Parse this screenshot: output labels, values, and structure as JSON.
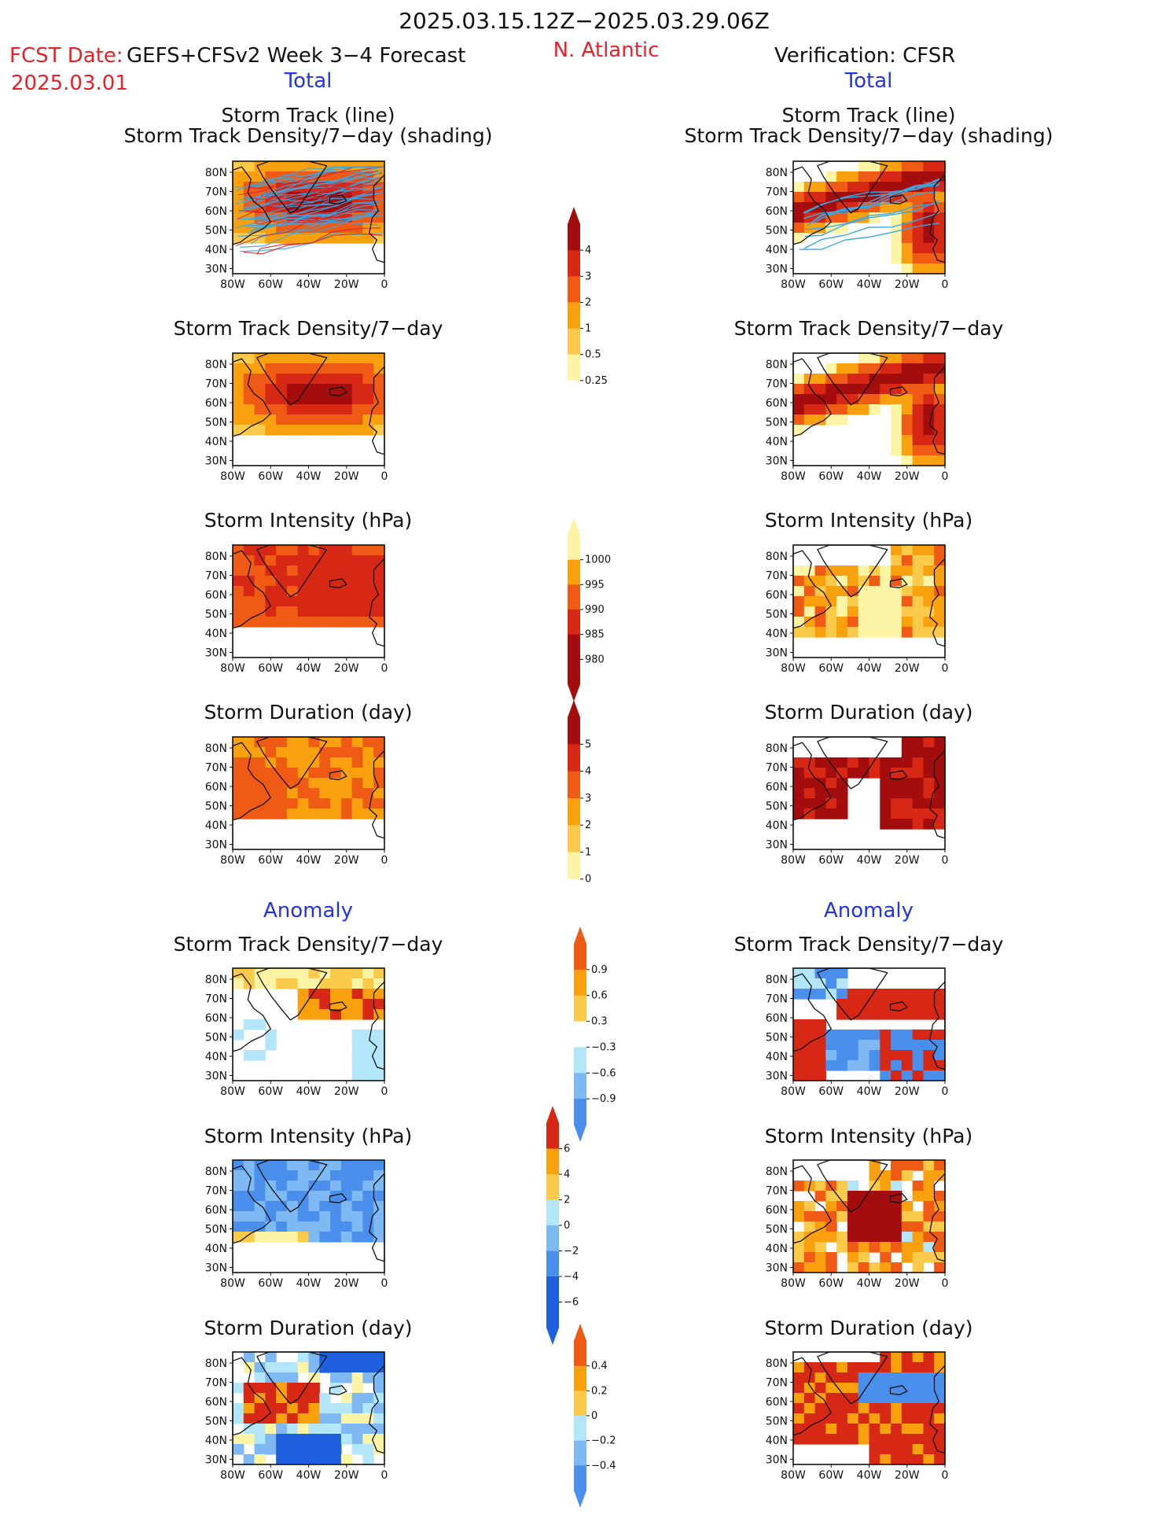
{
  "header": {
    "period": "2025.03.15.12Z−2025.03.29.06Z",
    "fcst_label": "FCST Date:",
    "fcst_model": "GEFS+CFSv2 Week 3−4 Forecast",
    "fcst_date": "2025.03.01",
    "region": "N. Atlantic",
    "verification": "Verification: CFSR"
  },
  "sections": {
    "total_left": "Total",
    "total_right": "Total",
    "anomaly_left": "Anomaly",
    "anomaly_right": "Anomaly"
  },
  "panel_titles": {
    "track_line": "Storm Track (line)",
    "track_shading": "Storm Track Density/7−day (shading)",
    "density": "Storm Track Density/7−day",
    "intensity": "Storm Intensity (hPa)",
    "duration": "Storm Duration (day)"
  },
  "axes": {
    "lat_labels": [
      "80N",
      "70N",
      "60N",
      "50N",
      "40N",
      "30N"
    ],
    "lon_labels": [
      "80W",
      "60W",
      "40W",
      "20W",
      "0"
    ]
  },
  "colorbars": {
    "density_total": [
      "4",
      "3",
      "2",
      "1",
      "0.5",
      "0.25"
    ],
    "intensity_total": [
      "1000",
      "995",
      "990",
      "985",
      "980"
    ],
    "duration_total": [
      "5",
      "4",
      "3",
      "2",
      "1",
      "0"
    ],
    "density_anom": [
      "0.9",
      "0.6",
      "0.3",
      "−0.3",
      "−0.6",
      "−0.9"
    ],
    "intensity_anom": [
      "6",
      "4",
      "2",
      "0",
      "−2",
      "−4",
      "−6"
    ],
    "duration_anom": [
      "0.4",
      "0.2",
      "0",
      "−0.2",
      "−0.4"
    ]
  },
  "colors": {
    "dark_red": "#a40d0d",
    "red": "#d72715",
    "orange_red": "#ef5a14",
    "orange": "#f9a00e",
    "light_orange": "#fbca4a",
    "pale_yellow": "#fdf4a6",
    "light_blue": "#b4e6fa",
    "mid_blue": "#7fb9f3",
    "blue": "#4a8fec",
    "dark_blue": "#1d5fdf",
    "track_blue": "#39a7e6",
    "track_red": "#d42a2a"
  }
}
